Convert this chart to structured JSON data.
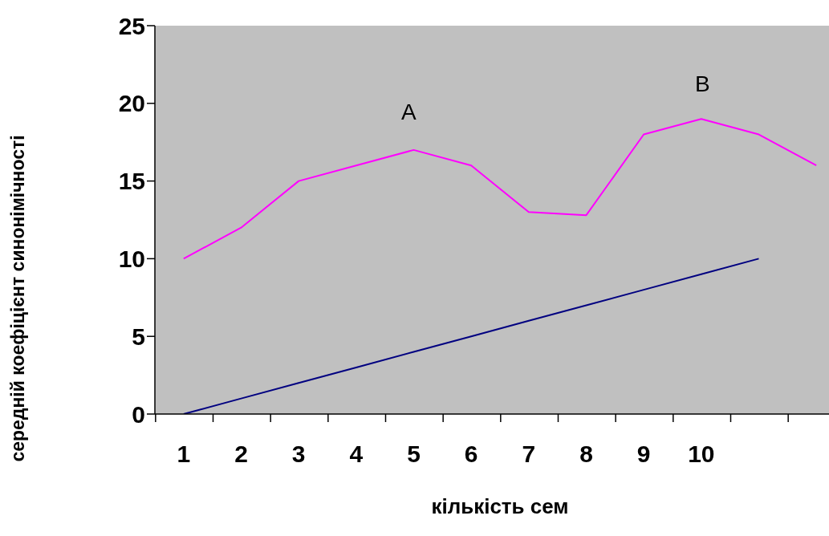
{
  "chart_data": {
    "type": "line",
    "xlabel": "кількість сем",
    "ylabel": "середній коефіцієнт синонімічності",
    "categories": [
      "1",
      "2",
      "3",
      "4",
      "5",
      "6",
      "7",
      "8",
      "9",
      "10",
      null,
      null
    ],
    "series": [
      {
        "color": "#ff00ff",
        "values": [
          10,
          12,
          15,
          16,
          17,
          16,
          13,
          12.8,
          18,
          19,
          18,
          16
        ]
      },
      {
        "color": "#000080",
        "values": [
          0,
          1,
          2,
          3,
          4,
          5,
          6,
          7,
          8,
          9,
          10,
          null
        ]
      }
    ],
    "ylim": [
      0,
      25
    ],
    "yticks": [
      0,
      5,
      10,
      15,
      20,
      25
    ],
    "grid": false,
    "legend": false,
    "marker": "none",
    "line_style": "solid",
    "annotations": [
      "A",
      "B"
    ]
  }
}
